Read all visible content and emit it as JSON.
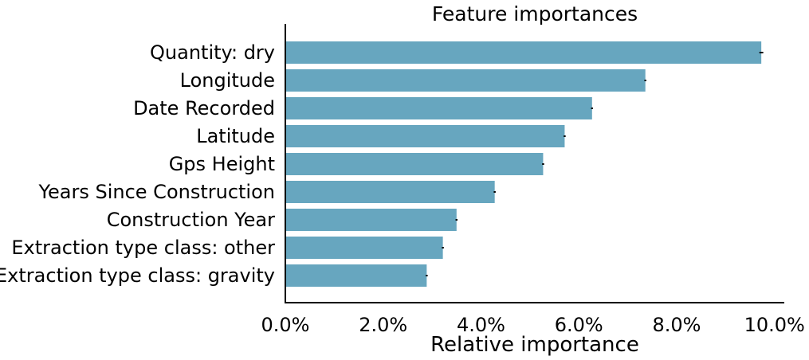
{
  "chart_data": {
    "type": "bar",
    "orientation": "horizontal",
    "title": "Feature importances",
    "xlabel": "Relative importance",
    "ylabel": "",
    "categories": [
      "Quantity: dry",
      "Longitude",
      "Date Recorded",
      "Latitude",
      "Gps Height",
      "Years Since Construction",
      "Construction Year",
      "Extraction type class: other",
      "Extraction type class: gravity"
    ],
    "values": [
      9.73,
      7.36,
      6.27,
      5.71,
      5.27,
      4.28,
      3.5,
      3.22,
      2.89
    ],
    "errors": [
      0.04,
      0.02,
      0.02,
      0.02,
      0.02,
      0.02,
      0.02,
      0.02,
      0.02
    ],
    "xlim": [
      0,
      10.2
    ],
    "xticks": [
      0,
      2,
      4,
      6,
      8,
      10
    ],
    "xtick_labels": [
      "0.0%",
      "2.0%",
      "4.0%",
      "6.0%",
      "8.0%",
      "10.0%"
    ],
    "grid": false,
    "legend": "none",
    "bar_color": "#67a6bf"
  }
}
